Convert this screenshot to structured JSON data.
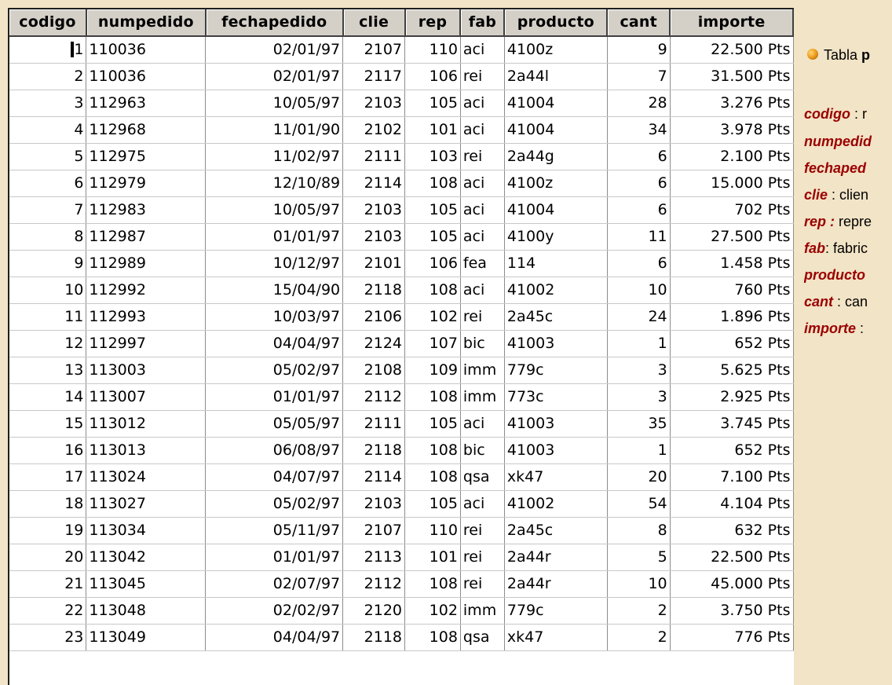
{
  "columns": [
    "codigo",
    "numpedido",
    "fechapedido",
    "clie",
    "rep",
    "fab",
    "producto",
    "cant",
    "importe"
  ],
  "rows": [
    [
      "1",
      "110036",
      "02/01/97",
      "2107",
      "110",
      "aci",
      "4100z",
      "9",
      "22.500 Pts"
    ],
    [
      "2",
      "110036",
      "02/01/97",
      "2117",
      "106",
      "rei",
      "2a44l",
      "7",
      "31.500 Pts"
    ],
    [
      "3",
      "112963",
      "10/05/97",
      "2103",
      "105",
      "aci",
      "41004",
      "28",
      "3.276 Pts"
    ],
    [
      "4",
      "112968",
      "11/01/90",
      "2102",
      "101",
      "aci",
      "41004",
      "34",
      "3.978 Pts"
    ],
    [
      "5",
      "112975",
      "11/02/97",
      "2111",
      "103",
      "rei",
      "2a44g",
      "6",
      "2.100 Pts"
    ],
    [
      "6",
      "112979",
      "12/10/89",
      "2114",
      "108",
      "aci",
      "4100z",
      "6",
      "15.000 Pts"
    ],
    [
      "7",
      "112983",
      "10/05/97",
      "2103",
      "105",
      "aci",
      "41004",
      "6",
      "702 Pts"
    ],
    [
      "8",
      "112987",
      "01/01/97",
      "2103",
      "105",
      "aci",
      "4100y",
      "11",
      "27.500 Pts"
    ],
    [
      "9",
      "112989",
      "10/12/97",
      "2101",
      "106",
      "fea",
      "114",
      "6",
      "1.458 Pts"
    ],
    [
      "10",
      "112992",
      "15/04/90",
      "2118",
      "108",
      "aci",
      "41002",
      "10",
      "760 Pts"
    ],
    [
      "11",
      "112993",
      "10/03/97",
      "2106",
      "102",
      "rei",
      "2a45c",
      "24",
      "1.896 Pts"
    ],
    [
      "12",
      "112997",
      "04/04/97",
      "2124",
      "107",
      "bic",
      "41003",
      "1",
      "652 Pts"
    ],
    [
      "13",
      "113003",
      "05/02/97",
      "2108",
      "109",
      "imm",
      "779c",
      "3",
      "5.625 Pts"
    ],
    [
      "14",
      "113007",
      "01/01/97",
      "2112",
      "108",
      "imm",
      "773c",
      "3",
      "2.925 Pts"
    ],
    [
      "15",
      "113012",
      "05/05/97",
      "2111",
      "105",
      "aci",
      "41003",
      "35",
      "3.745 Pts"
    ],
    [
      "16",
      "113013",
      "06/08/97",
      "2118",
      "108",
      "bic",
      "41003",
      "1",
      "652 Pts"
    ],
    [
      "17",
      "113024",
      "04/07/97",
      "2114",
      "108",
      "qsa",
      "xk47",
      "20",
      "7.100 Pts"
    ],
    [
      "18",
      "113027",
      "05/02/97",
      "2103",
      "105",
      "aci",
      "41002",
      "54",
      "4.104 Pts"
    ],
    [
      "19",
      "113034",
      "05/11/97",
      "2107",
      "110",
      "rei",
      "2a45c",
      "8",
      "632 Pts"
    ],
    [
      "20",
      "113042",
      "01/01/97",
      "2113",
      "101",
      "rei",
      "2a44r",
      "5",
      "22.500 Pts"
    ],
    [
      "21",
      "113045",
      "02/07/97",
      "2112",
      "108",
      "rei",
      "2a44r",
      "10",
      "45.000 Pts"
    ],
    [
      "22",
      "113048",
      "02/02/97",
      "2120",
      "102",
      "imm",
      "779c",
      "2",
      "3.750 Pts"
    ],
    [
      "23",
      "113049",
      "04/04/97",
      "2118",
      "108",
      "qsa",
      "xk47",
      "2",
      "776 Pts"
    ]
  ],
  "legend": {
    "title_prefix": "Tabla ",
    "title_bold": "p",
    "items": [
      {
        "key": "codigo",
        "sep": " : ",
        "desc": "r"
      },
      {
        "key": "numpedid",
        "sep": "",
        "desc": ""
      },
      {
        "key": "fechaped",
        "sep": "",
        "desc": ""
      },
      {
        "key": "clie",
        "sep": " : ",
        "desc": "clien"
      },
      {
        "key": "rep :",
        "sep": " ",
        "desc": "repre"
      },
      {
        "key": "fab",
        "sep": ": ",
        "desc": "fabric"
      },
      {
        "key": "producto",
        "sep": "",
        "desc": ""
      },
      {
        "key": "cant",
        "sep": " : ",
        "desc": "can"
      },
      {
        "key": "importe",
        "sep": " : ",
        "desc": ""
      }
    ]
  },
  "colors": {
    "page_bg": "#f2e4c6",
    "header_bg": "#d4d0c8",
    "legend_key": "#9a0000",
    "bullet": "#f0a020"
  }
}
